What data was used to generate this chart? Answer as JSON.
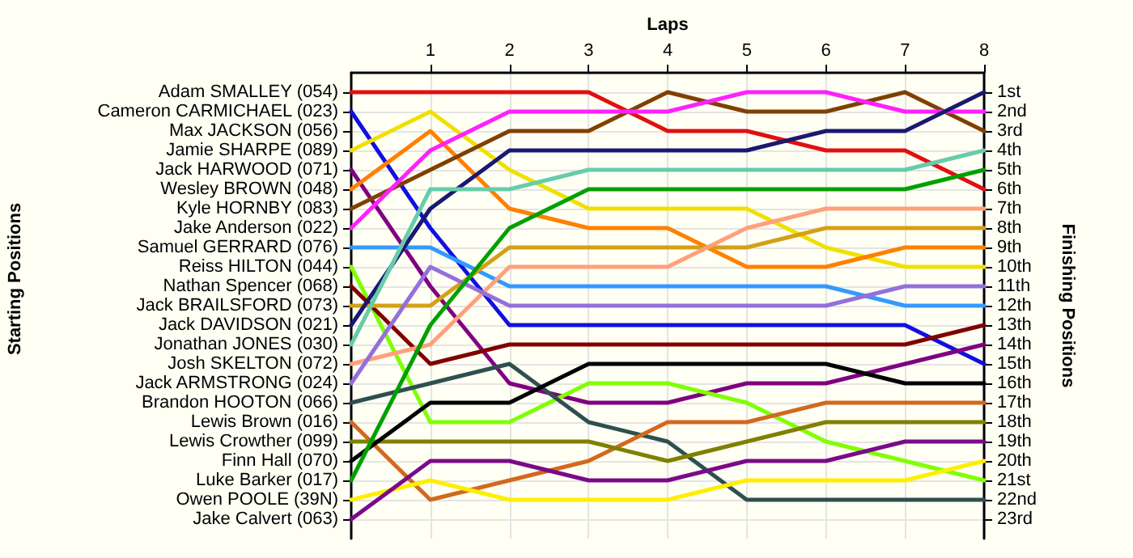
{
  "chart_data": {
    "type": "line",
    "xlabel": "Laps",
    "ylabel": "Finishing Positions",
    "x": [
      0,
      1,
      2,
      3,
      4,
      5,
      6,
      7,
      8
    ],
    "xlim": [
      0,
      8
    ],
    "xticks": [
      1,
      2,
      3,
      4,
      5,
      6,
      7,
      8
    ],
    "ylim": [
      24,
      0
    ],
    "yticks": [
      {
        "value": 1,
        "label": "1st"
      },
      {
        "value": 2,
        "label": "2nd"
      },
      {
        "value": 3,
        "label": "3rd"
      },
      {
        "value": 4,
        "label": "4th"
      },
      {
        "value": 5,
        "label": "5th"
      },
      {
        "value": 6,
        "label": "6th"
      },
      {
        "value": 7,
        "label": "7th"
      },
      {
        "value": 8,
        "label": "8th"
      },
      {
        "value": 9,
        "label": "9th"
      },
      {
        "value": 10,
        "label": "10th"
      },
      {
        "value": 11,
        "label": "11th"
      },
      {
        "value": 12,
        "label": "12th"
      },
      {
        "value": 13,
        "label": "13th"
      },
      {
        "value": 14,
        "label": "14th"
      },
      {
        "value": 15,
        "label": "15th"
      },
      {
        "value": 16,
        "label": "16th"
      },
      {
        "value": 17,
        "label": "17th"
      },
      {
        "value": 18,
        "label": "18th"
      },
      {
        "value": 19,
        "label": "19th"
      },
      {
        "value": 20,
        "label": "20th"
      },
      {
        "value": 21,
        "label": "21st"
      },
      {
        "value": 22,
        "label": "22nd"
      },
      {
        "value": 23,
        "label": "23rd"
      }
    ],
    "annotations": [
      "Starting Positions",
      "Adam SMALLEY (054)",
      "Cameron CARMICHAEL (023)",
      "Max JACKSON (056)",
      "Jamie SHARPE (089)",
      "Jack HARWOOD (071)",
      "Wesley BROWN (048)",
      "Kyle HORNBY (083)",
      "Jake Anderson (022)",
      "Samuel GERRARD (076)",
      "Reiss HILTON (044)",
      "Nathan Spencer (068)",
      "Jack BRAILSFORD (073)",
      "Jack DAVIDSON (021)",
      "Jonathan JONES (030)",
      "Josh SKELTON (072)",
      "Jack ARMSTRONG (024)",
      "Brandon HOOTON (066)",
      "Lewis Brown (016)",
      "Lewis Crowther (099)",
      "Finn Hall (070)",
      "Luke Barker (017)",
      "Owen POOLE (39N)",
      "Jake Calvert (063)"
    ],
    "grid": true,
    "marker": "none",
    "line_style": "solid",
    "series": [
      {
        "color": "#e01010",
        "values": [
          1,
          1,
          1,
          1,
          3,
          3,
          4,
          4,
          6
        ]
      },
      {
        "color": "#1010e0",
        "values": [
          2,
          8,
          13,
          13,
          13,
          13,
          13,
          13,
          15
        ]
      },
      {
        "color": "#f0e000",
        "values": [
          4,
          2,
          5,
          7,
          7,
          7,
          9,
          10,
          10
        ]
      },
      {
        "color": "#800080",
        "values": [
          5,
          11,
          16,
          17,
          17,
          16,
          16,
          15,
          14
        ]
      },
      {
        "color": "#ff8000",
        "values": [
          6,
          3,
          7,
          8,
          8,
          10,
          10,
          9,
          9
        ]
      },
      {
        "color": "#804000",
        "values": [
          7,
          5,
          3,
          3,
          1,
          2,
          2,
          1,
          3
        ]
      },
      {
        "color": "#ff20ff",
        "values": [
          8,
          4,
          2,
          2,
          2,
          1,
          1,
          2,
          2
        ]
      },
      {
        "color": "#3399ff",
        "values": [
          9,
          9,
          11,
          11,
          11,
          11,
          11,
          12,
          12
        ]
      },
      {
        "color": "#80ff00",
        "values": [
          10,
          18,
          18,
          16,
          16,
          17,
          19,
          20,
          21
        ]
      },
      {
        "color": "#800000",
        "values": [
          11,
          15,
          14,
          14,
          14,
          14,
          14,
          14,
          13
        ]
      },
      {
        "color": "#d4a017",
        "values": [
          12,
          12,
          9,
          9,
          9,
          9,
          8,
          8,
          8
        ]
      },
      {
        "color": "#191970",
        "values": [
          13,
          7,
          4,
          4,
          4,
          4,
          3,
          3,
          1
        ]
      },
      {
        "color": "#66ccaa",
        "values": [
          14,
          6,
          6,
          5,
          5,
          5,
          5,
          5,
          4
        ]
      },
      {
        "color": "#ffa07a",
        "values": [
          15,
          14,
          10,
          10,
          10,
          8,
          7,
          7,
          7
        ]
      },
      {
        "color": "#9370db",
        "values": [
          16,
          10,
          12,
          12,
          12,
          12,
          12,
          11,
          11
        ]
      },
      {
        "color": "#2f4f4f",
        "values": [
          17,
          16,
          15,
          18,
          19,
          22,
          22,
          22,
          22
        ]
      },
      {
        "color": "#d2691e",
        "values": [
          18,
          22,
          21,
          20,
          18,
          18,
          17,
          17,
          17
        ]
      },
      {
        "color": "#808000",
        "values": [
          19,
          19,
          19,
          19,
          20,
          19,
          18,
          18,
          18
        ]
      },
      {
        "color": "#000000",
        "values": [
          20,
          17,
          17,
          15,
          15,
          15,
          15,
          16,
          16
        ]
      },
      {
        "color": "#00a000",
        "values": [
          21,
          13,
          8,
          6,
          6,
          6,
          6,
          6,
          5
        ]
      },
      {
        "color": "#ffee00",
        "values": [
          22,
          21,
          22,
          22,
          22,
          21,
          21,
          21,
          20
        ]
      },
      {
        "color": "#7a0a8a",
        "values": [
          23,
          20,
          20,
          21,
          21,
          20,
          20,
          19,
          19
        ]
      }
    ]
  }
}
